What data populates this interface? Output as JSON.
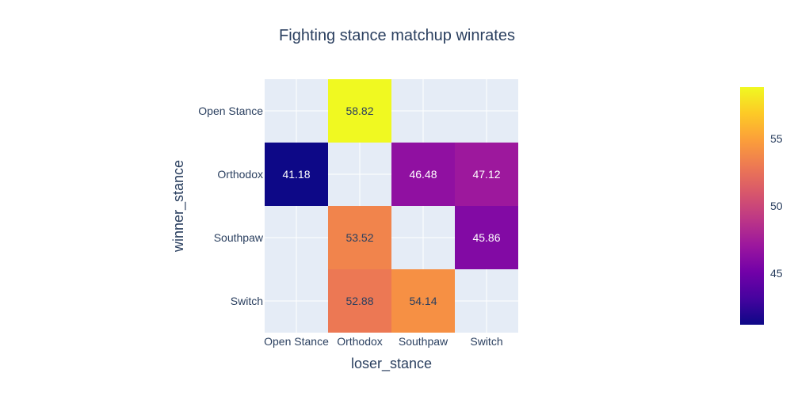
{
  "chart_data": {
    "type": "heatmap",
    "title": "Fighting stance matchup winrates",
    "xlabel": "loser_stance",
    "ylabel": "winner_stance",
    "x_categories": [
      "Open Stance",
      "Orthodox",
      "Southpaw",
      "Switch"
    ],
    "y_categories": [
      "Open Stance",
      "Orthodox",
      "Southpaw",
      "Switch"
    ],
    "cells": [
      {
        "winner": "Open Stance",
        "loser": "Orthodox",
        "value": 58.82
      },
      {
        "winner": "Orthodox",
        "loser": "Open Stance",
        "value": 41.18
      },
      {
        "winner": "Orthodox",
        "loser": "Southpaw",
        "value": 46.48
      },
      {
        "winner": "Orthodox",
        "loser": "Switch",
        "value": 47.12
      },
      {
        "winner": "Southpaw",
        "loser": "Orthodox",
        "value": 53.52
      },
      {
        "winner": "Southpaw",
        "loser": "Switch",
        "value": 45.86
      },
      {
        "winner": "Switch",
        "loser": "Orthodox",
        "value": 52.88
      },
      {
        "winner": "Switch",
        "loser": "Southpaw",
        "value": 54.14
      }
    ],
    "colorscale": "plasma",
    "zrange": [
      41.18,
      58.82
    ],
    "colorbar_ticks": [
      45,
      50,
      55
    ],
    "grid": true,
    "background": "#e5ecf6"
  }
}
